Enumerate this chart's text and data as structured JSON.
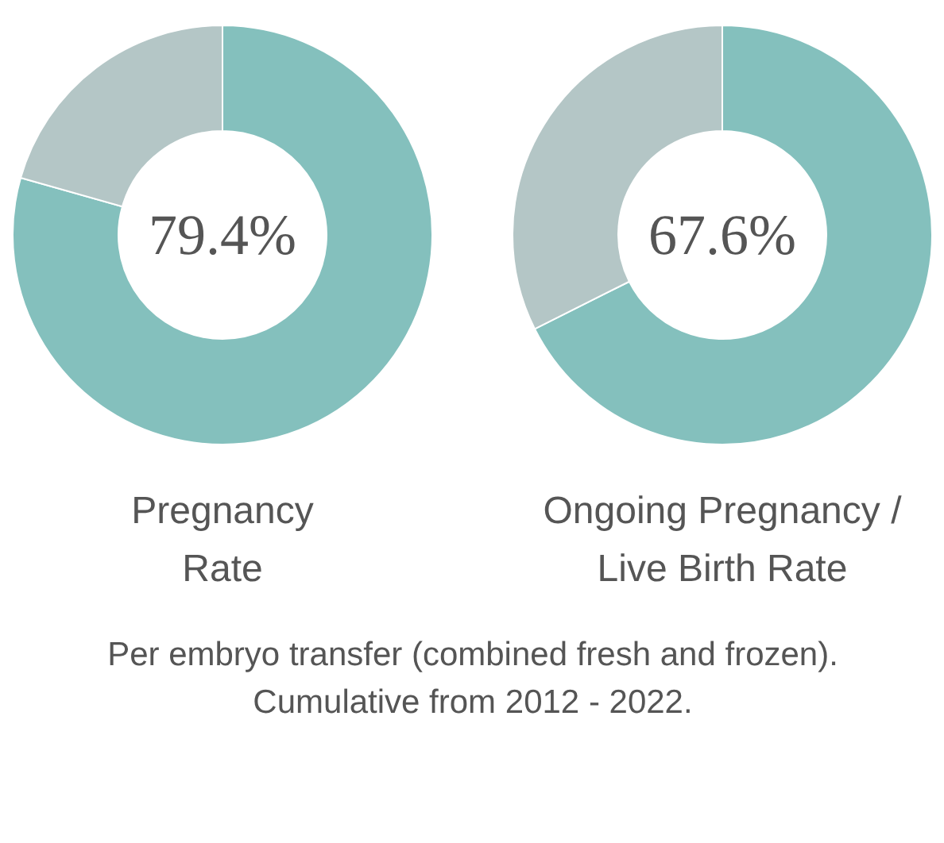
{
  "chart_data": [
    {
      "type": "donut",
      "title": "Pregnancy\nRate",
      "categories": [
        null,
        null
      ],
      "values": [
        79.4,
        20.6
      ],
      "colors": [
        "#84c0bd",
        "#b4c6c6"
      ],
      "value_labels": [
        "79.4%",
        null
      ]
    },
    {
      "type": "donut",
      "title": "Ongoing Pregnancy /\nLive Birth Rate",
      "categories": [
        null,
        null
      ],
      "values": [
        67.6,
        32.4
      ],
      "colors": [
        "#84c0bd",
        "#b4c6c6"
      ],
      "value_labels": [
        "67.6%",
        null
      ]
    },
    {
      "type": "other",
      "annotations": [
        "Per embryo transfer (combined fresh and frozen).",
        "Cumulative from 2012 - 2022."
      ]
    }
  ]
}
